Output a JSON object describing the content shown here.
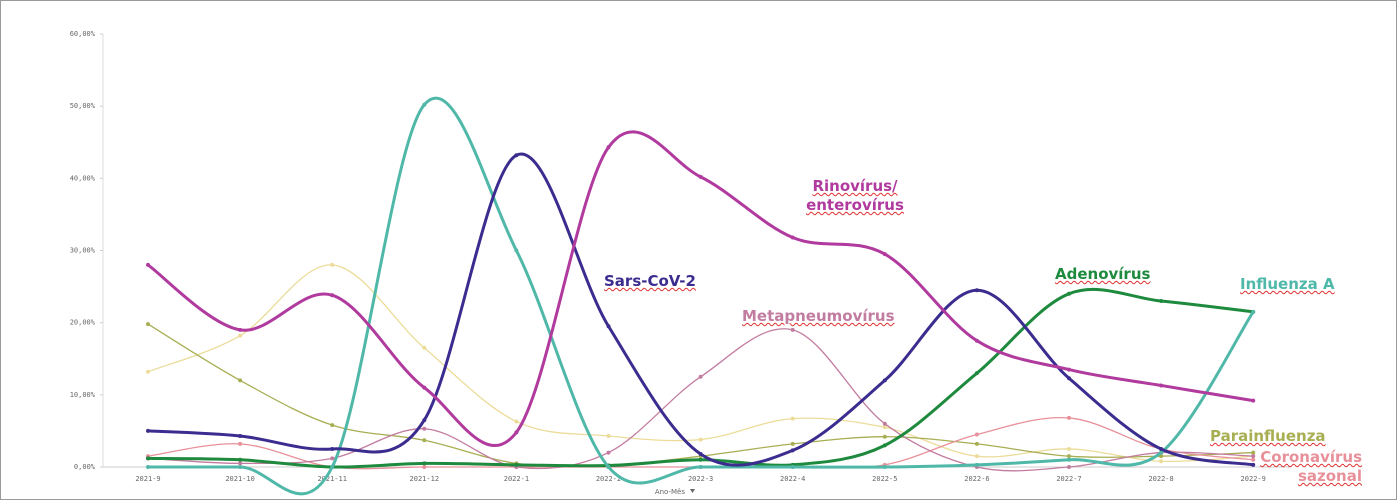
{
  "chart_data": {
    "type": "line",
    "x_label": "Ano-Mês",
    "categories": [
      "2021-9",
      "2021-10",
      "2021-11",
      "2021-12",
      "2022-1",
      "2022-2",
      "2022-3",
      "2022-4",
      "2022-5",
      "2022-6",
      "2022-7",
      "2022-8",
      "2022-9"
    ],
    "ylim": [
      0,
      60
    ],
    "yticks": [
      {
        "value": 0,
        "label": "0,00%"
      },
      {
        "value": 10,
        "label": "10,00%"
      },
      {
        "value": 20,
        "label": "20,00%"
      },
      {
        "value": 30,
        "label": "30,00%"
      },
      {
        "value": 40,
        "label": "40,00%"
      },
      {
        "value": 50,
        "label": "50,00%"
      },
      {
        "value": 60,
        "label": "60,00%"
      }
    ],
    "series": [
      {
        "color": "#ecdc9a",
        "values": [
          13.2,
          18.2,
          28,
          16.5,
          6.3,
          4.3,
          3.8,
          6.7,
          5.5,
          1.5,
          2.5,
          0.8,
          1.5
        ]
      },
      {
        "name": "Parainfluenza",
        "color": "#a8ae52",
        "values": [
          19.8,
          12,
          5.8,
          3.7,
          0.5,
          0.2,
          1.5,
          3.2,
          4.2,
          3.2,
          1.5,
          1.5,
          2
        ]
      },
      {
        "name": "Coronavírus sazonal",
        "color": "#e8909a",
        "values": [
          1.5,
          3.2,
          0,
          0,
          0,
          0,
          0,
          0,
          0.3,
          4.5,
          6.8,
          2.5,
          1
        ]
      },
      {
        "name": "Metapneumovírus",
        "color": "#c27ca0",
        "values": [
          1.2,
          0.5,
          1.2,
          5.3,
          0,
          2,
          12.5,
          19,
          6,
          0,
          0,
          2,
          1.5
        ]
      },
      {
        "name": "Adenovírus",
        "color": "#1e8a3e",
        "values": [
          1.2,
          1,
          0,
          0.5,
          0.3,
          0.2,
          1,
          0.3,
          3,
          13,
          24,
          23,
          21.5
        ]
      },
      {
        "name": "Influenza A",
        "color": "#4fb8a8",
        "values": [
          0,
          0,
          0,
          50.2,
          30,
          0,
          0,
          0,
          0,
          0.3,
          1,
          2,
          21.5
        ]
      },
      {
        "name": "Sars-CoV-2",
        "color": "#3b2d8f",
        "values": [
          5,
          4.3,
          2.5,
          6.5,
          43.2,
          19.5,
          1.8,
          2.3,
          12,
          24.5,
          12.3,
          2.5,
          0.3
        ]
      },
      {
        "name": "Rinovírus/ enterovírus",
        "color": "#b03a9e",
        "values": [
          28,
          19,
          23.8,
          11,
          4.8,
          44.3,
          40.2,
          31.8,
          29.5,
          17.5,
          13.5,
          11.3,
          9.2
        ]
      }
    ]
  }
}
